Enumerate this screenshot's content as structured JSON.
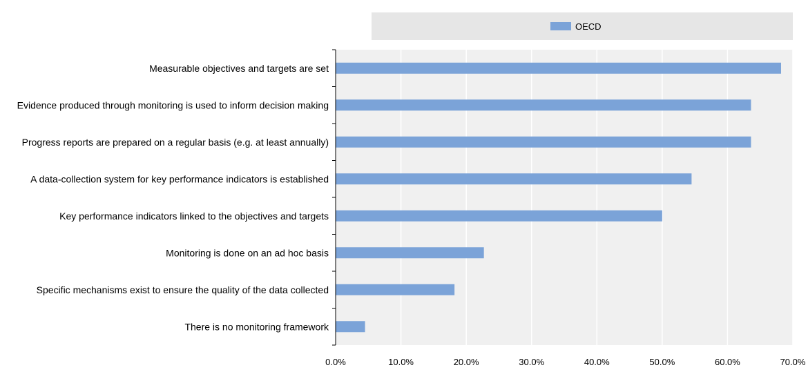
{
  "chart_data": {
    "type": "bar",
    "orientation": "horizontal",
    "categories": [
      "Measurable objectives and targets are set",
      "Evidence produced through monitoring is used to inform decision making",
      "Progress reports are prepared on a regular basis (e.g. at least annually)",
      "A data-collection system for key performance indicators is established",
      "Key performance indicators linked to the objectives and targets",
      "Monitoring is done on an ad hoc basis",
      "Specific mechanisms exist to ensure the quality of the data collected",
      "There is no monitoring framework"
    ],
    "series": [
      {
        "name": "OECD",
        "color": "#7ba3d8",
        "values": [
          68.2,
          63.6,
          63.6,
          54.5,
          50.0,
          22.7,
          18.2,
          4.5
        ]
      }
    ],
    "xlim": [
      0,
      70
    ],
    "x_ticks": [
      "0.0%",
      "10.0%",
      "20.0%",
      "30.0%",
      "40.0%",
      "50.0%",
      "60.0%",
      "70.0%"
    ],
    "x_tick_values": [
      0,
      10,
      20,
      30,
      40,
      50,
      60,
      70
    ],
    "grid": "vertical",
    "legend": "top",
    "colors": {
      "plot_background": "#f0f0f0",
      "legend_background": "#e6e6e6",
      "gridline": "#ffffff",
      "axis": "#000000"
    }
  }
}
